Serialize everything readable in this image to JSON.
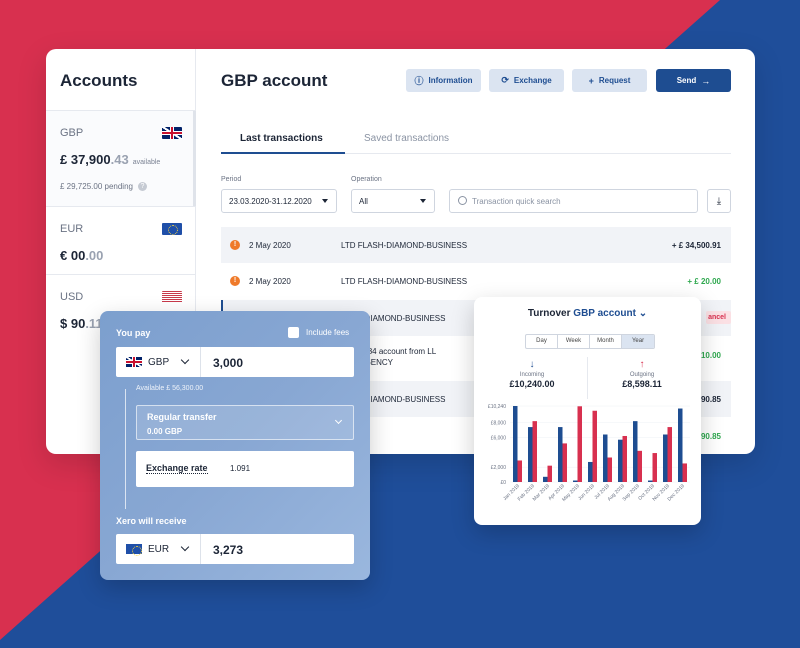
{
  "colors": {
    "red": "#d8304f",
    "blue": "#1f4e9a",
    "primary": "#1e4d91",
    "green": "#2fa84f",
    "orange": "#ef7a2a"
  },
  "sidebar": {
    "title": "Accounts",
    "accounts": [
      {
        "currency": "GBP",
        "flag": "uk-flag-icon",
        "balance_int": "£ 37,900",
        "balance_dec": ".43",
        "available_label": "available",
        "pending": "£ 29,725.00",
        "pending_label": "pending",
        "help": "?"
      },
      {
        "currency": "EUR",
        "flag": "eu-flag-icon",
        "balance_int": "€ 00",
        "balance_dec": ".00"
      },
      {
        "currency": "USD",
        "flag": "us-flag-icon",
        "balance_int": "$ 90",
        "balance_dec": ".11"
      }
    ]
  },
  "header": {
    "title": "GBP account",
    "buttons": {
      "information": "Information",
      "exchange": "Exchange",
      "request": "Request",
      "send": "Send"
    }
  },
  "tabs": {
    "last": "Last transactions",
    "saved": "Saved transactions"
  },
  "filters": {
    "period_label": "Period",
    "period_value": "23.03.2020-31.12.2020",
    "operation_label": "Operation",
    "operation_value": "All",
    "search_placeholder": "Transaction quick search"
  },
  "transactions": [
    {
      "date": "2 May 2020",
      "name": "LTD FLASH-DIAMOND-BUSINESS",
      "amount": "+ £ 34,500.91"
    },
    {
      "date": "2 May 2020",
      "name": "LTD FLASH-DIAMOND-BUSINESS",
      "amount": "+ £ 20.00"
    },
    {
      "name": "LASH-DIAMOND-BUSINESS",
      "action": "ancel"
    },
    {
      "name": "38939484 account from LL",
      "name2": "ARE AGENCY",
      "amount": "10.00"
    },
    {
      "name": "LASH-DIAMOND-BUSINESS",
      "amount": "90.85"
    },
    {
      "name": "ayment",
      "amount": "90.85"
    }
  ],
  "pay": {
    "you_pay": "You pay",
    "include_fees": "Include fees",
    "from_currency": "GBP",
    "from_value": "3,000",
    "available": "Available £ 56,300.00",
    "transfer_type": "Regular transfer",
    "fee": "0.00 GBP",
    "rate_label": "Exchange rate",
    "rate_value": "1.091",
    "receive_label": "Xero will receive",
    "to_currency": "EUR",
    "to_value": "3,273"
  },
  "turnover": {
    "title": "Turnover",
    "account": "GBP account",
    "chevron": "⌄",
    "periods": [
      "Day",
      "Week",
      "Month",
      "Year"
    ],
    "selected_period": "Year",
    "incoming_label": "Incoming",
    "incoming_value": "£10,240.00",
    "outgoing_label": "Outgoing",
    "outgoing_value": "£8,598.11"
  },
  "chart_data": {
    "type": "bar",
    "categories": [
      "Jan 2019",
      "Feb 2019",
      "Mar 2019",
      "Apr 2019",
      "May 2019",
      "Jun 2019",
      "Jul 2019",
      "Aug 2019",
      "Sep 2019",
      "Oct 2019",
      "Nov 2019",
      "Dec 2019"
    ],
    "series": [
      {
        "name": "Incoming",
        "color": "#1e4d91",
        "values": [
          10240,
          7400,
          700,
          7400,
          200,
          2700,
          6400,
          5700,
          8200,
          200,
          6400,
          9900
        ]
      },
      {
        "name": "Outgoing",
        "color": "#d8304f",
        "values": [
          2900,
          8200,
          2200,
          5200,
          10200,
          9600,
          3300,
          6200,
          4200,
          3900,
          7400,
          2500
        ]
      }
    ],
    "yticks": [
      "£0",
      "£2,000",
      "£6,000",
      "£8,000",
      "£10,240"
    ],
    "ylim": [
      0,
      10240
    ]
  }
}
